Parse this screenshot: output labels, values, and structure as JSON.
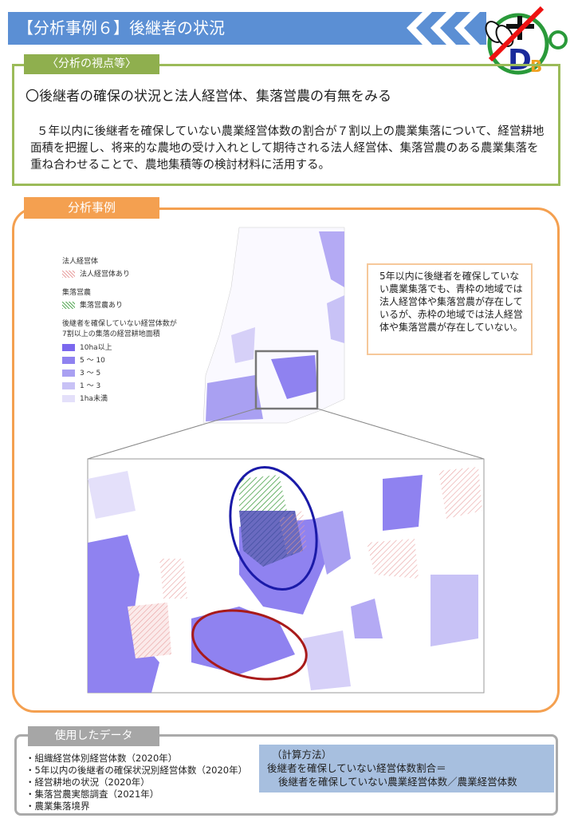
{
  "header": {
    "title": "【分析事例６】後継者の状況"
  },
  "viewpoint": {
    "tab": "〈分析の視点等〉",
    "heading": "〇後継者の確保の状況と法人経営体、集落営農の有無をみる",
    "body": "５年以内に後継者を確保していない農業経営体数の割合が７割以上の農業集落について、経営耕地面積を把握し、将来的な農地の受け入れとして期待される法人経営体、集落営農のある農業集落を重ね合わせることで、農地集積等の検討材料に活用する。"
  },
  "example": {
    "tab": "分析事例",
    "legend": {
      "corp_title": "法人経営体",
      "corp_item": "法人経営体あり",
      "community_title": "集落営農",
      "community_item": "集落営農あり",
      "area_title_1": "後継者を確保していない経営体数が",
      "area_title_2": "7割以上の集落の経営耕地面積",
      "classes": [
        {
          "label": "10ha以上",
          "color": "#7b68ee"
        },
        {
          "label": "5 ～ 10",
          "color": "#8f82f0"
        },
        {
          "label": "3 ～ 5",
          "color": "#a9a0f2"
        },
        {
          "label": "1 ～ 3",
          "color": "#c8c2f6"
        },
        {
          "label": "1ha未満",
          "color": "#e4e0fa"
        }
      ]
    },
    "callout": "5年以内に後継者を確保していない農業集落でも、青枠の地域では法人経営体や集落営農が存在しているが、赤枠の地域では法人経営体や集落営農が存在していない。",
    "colors": {
      "blue_ring": "#1a1aa8",
      "red_ring": "#a81a1a",
      "corp_hatch": "#e8a0a0",
      "community_hatch": "#5aaa5a"
    }
  },
  "data_used": {
    "tab": "使用したデータ",
    "items": [
      "・組織経営体別経営体数（2020年）",
      "・5年以内の後継者の確保状況別経営体数（2020年）",
      "・経営耕地の状況（2020年）",
      "・集落営農実態調査（2021年）",
      "・農業集落境界"
    ]
  },
  "calc": {
    "title": "（計算方法）",
    "line1": "後継者を確保していない経営体数割合＝",
    "line2": "後継者を確保していない農業経営体数／農業経営体数"
  },
  "logo": {
    "text": "DB"
  }
}
